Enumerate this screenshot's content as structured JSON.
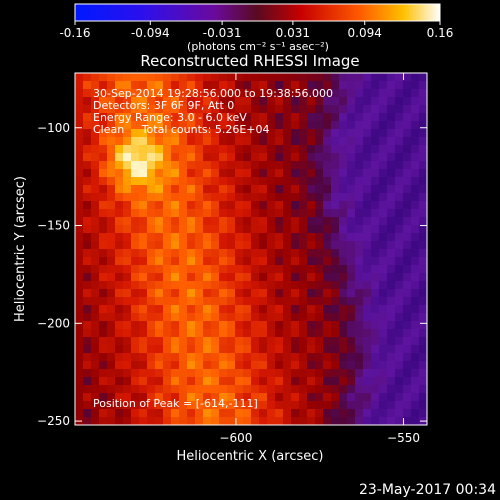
{
  "colorbar": {
    "ticks": [
      "-0.16",
      "-0.094",
      "-0.031",
      "0.031",
      "0.094",
      "0.16"
    ],
    "values": [
      -0.16,
      -0.094,
      -0.031,
      0.031,
      0.094,
      0.16
    ],
    "units": "(photons cm⁻² s⁻¹ asec⁻²)"
  },
  "chart_data": {
    "type": "heatmap",
    "title": "Reconstructed RHESSI Image",
    "xlabel": "Heliocentric X (arcsec)",
    "ylabel": "Heliocentric Y (arcsec)",
    "xlim": [
      -648,
      -543
    ],
    "ylim": [
      -252,
      -72
    ],
    "xticks": [
      -600,
      -550,
      -500
    ],
    "yticks": [
      -100,
      -150,
      -200,
      -250
    ],
    "peak": [
      -614,
      -111
    ],
    "zlim": [
      -0.16,
      0.16
    ],
    "colormap": "red-temperature",
    "annotations": [
      "30-Sep-2014 19:28:56.000 to 19:38:56.000",
      "Detectors: 3F 6F 9F, Att 0",
      "Energy Range: 3.0 - 6.0 keV",
      "Clean     Total counts: 5.26E+04",
      "Position of Peak = [-614,-111]"
    ]
  },
  "timestamp": "23-May-2017 00:34"
}
